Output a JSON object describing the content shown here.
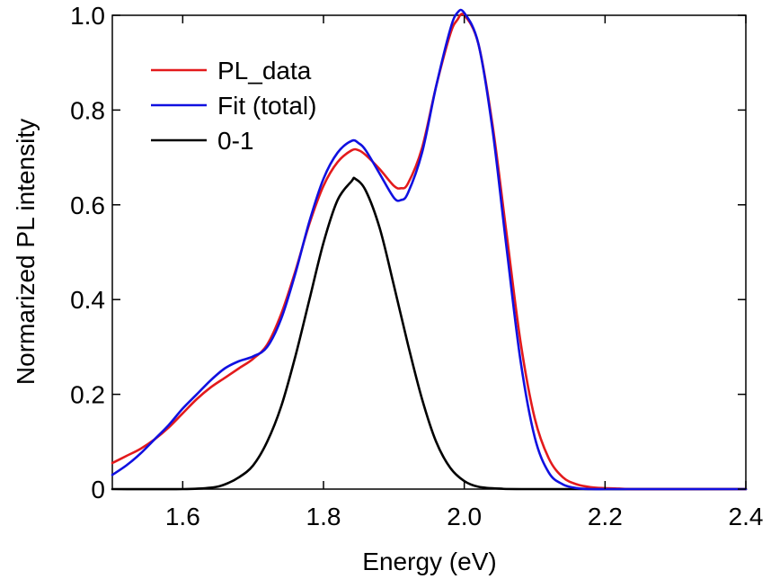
{
  "chart_data": {
    "type": "line",
    "title": "",
    "xlabel": "Energy (eV)",
    "ylabel": "Normarized PL intensity",
    "xlim": [
      1.5,
      2.4
    ],
    "ylim": [
      0,
      1.0
    ],
    "x_ticks": [
      1.6,
      1.8,
      2.0,
      2.2,
      2.4
    ],
    "x_tick_labels": [
      "1.6",
      "1.8",
      "2.0",
      "2.2",
      "2.4"
    ],
    "y_ticks": [
      0,
      0.2,
      0.4,
      0.6,
      0.8,
      1.0
    ],
    "y_tick_labels": [
      "0",
      "0.2",
      "0.4",
      "0.6",
      "0.8",
      "1.0"
    ],
    "grid": false,
    "legend_position": "top-left",
    "series": [
      {
        "name": "PL_data",
        "color": "#e31a1c",
        "x": [
          1.5,
          1.52,
          1.54,
          1.56,
          1.58,
          1.6,
          1.62,
          1.64,
          1.66,
          1.68,
          1.7,
          1.72,
          1.74,
          1.76,
          1.78,
          1.8,
          1.82,
          1.84,
          1.85,
          1.86,
          1.88,
          1.9,
          1.91,
          1.92,
          1.94,
          1.96,
          1.98,
          1.99,
          2.0,
          2.02,
          2.04,
          2.06,
          2.08,
          2.1,
          2.12,
          2.14,
          2.16,
          2.18,
          2.2,
          2.22,
          2.24,
          2.3,
          2.4
        ],
        "y": [
          0.055,
          0.07,
          0.085,
          0.105,
          0.13,
          0.16,
          0.19,
          0.215,
          0.235,
          0.255,
          0.275,
          0.305,
          0.37,
          0.46,
          0.56,
          0.64,
          0.69,
          0.715,
          0.715,
          0.705,
          0.675,
          0.64,
          0.635,
          0.645,
          0.72,
          0.85,
          0.96,
          0.99,
          1.0,
          0.94,
          0.77,
          0.54,
          0.31,
          0.15,
          0.065,
          0.025,
          0.01,
          0.004,
          0.002,
          0.001,
          0.0,
          0.0,
          0.0
        ]
      },
      {
        "name": "Fit (total)",
        "color": "#1010e0",
        "x": [
          1.5,
          1.52,
          1.54,
          1.56,
          1.58,
          1.6,
          1.62,
          1.64,
          1.66,
          1.68,
          1.7,
          1.72,
          1.74,
          1.76,
          1.78,
          1.8,
          1.82,
          1.84,
          1.85,
          1.86,
          1.88,
          1.9,
          1.91,
          1.92,
          1.94,
          1.96,
          1.98,
          1.99,
          2.0,
          2.02,
          2.04,
          2.06,
          2.08,
          2.1,
          2.12,
          2.14,
          2.16,
          2.18,
          2.2,
          2.22,
          2.24,
          2.3,
          2.4
        ],
        "y": [
          0.03,
          0.05,
          0.075,
          0.105,
          0.135,
          0.17,
          0.2,
          0.23,
          0.255,
          0.27,
          0.28,
          0.3,
          0.36,
          0.455,
          0.565,
          0.655,
          0.71,
          0.735,
          0.73,
          0.715,
          0.665,
          0.615,
          0.61,
          0.625,
          0.71,
          0.85,
          0.97,
          1.005,
          1.005,
          0.94,
          0.76,
          0.51,
          0.27,
          0.11,
          0.035,
          0.01,
          0.002,
          0.0,
          0.0,
          0.0,
          0.0,
          0.0,
          0.0
        ]
      },
      {
        "name": "0-1",
        "color": "#000000",
        "x": [
          1.5,
          1.6,
          1.64,
          1.66,
          1.68,
          1.7,
          1.72,
          1.74,
          1.76,
          1.78,
          1.8,
          1.82,
          1.84,
          1.845,
          1.86,
          1.88,
          1.9,
          1.92,
          1.94,
          1.96,
          1.98,
          2.0,
          2.02,
          2.05,
          2.1,
          2.4
        ],
        "y": [
          0.0,
          0.0,
          0.003,
          0.01,
          0.025,
          0.05,
          0.1,
          0.175,
          0.28,
          0.4,
          0.52,
          0.61,
          0.65,
          0.655,
          0.63,
          0.55,
          0.43,
          0.305,
          0.19,
          0.1,
          0.045,
          0.017,
          0.005,
          0.001,
          0.0,
          0.0
        ]
      }
    ]
  }
}
